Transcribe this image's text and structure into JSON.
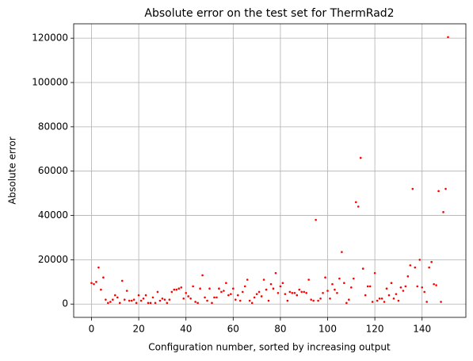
{
  "chart_data": {
    "type": "scatter",
    "title": "Absolute error on the test set for ThermRad2",
    "x_label": "Configuration number, sorted by increasing output",
    "y_label": "Absolute error",
    "color": "#ff0000",
    "grid": true,
    "xlim": [
      -7.55,
      158.55
    ],
    "ylim": [
      -6000,
      126500
    ],
    "xticks": [
      0,
      20,
      40,
      60,
      80,
      100,
      120,
      140
    ],
    "yticks": [
      0,
      20000,
      40000,
      60000,
      80000,
      100000,
      120000
    ],
    "x": [
      0,
      1,
      2,
      3,
      4,
      5,
      6,
      7,
      8,
      9,
      10,
      11,
      12,
      13,
      14,
      15,
      16,
      17,
      18,
      19,
      20,
      21,
      22,
      23,
      24,
      25,
      26,
      27,
      28,
      29,
      30,
      31,
      32,
      33,
      34,
      35,
      36,
      37,
      38,
      39,
      40,
      41,
      42,
      43,
      44,
      45,
      46,
      47,
      48,
      49,
      50,
      51,
      52,
      53,
      54,
      55,
      56,
      57,
      58,
      59,
      60,
      61,
      62,
      63,
      64,
      65,
      66,
      67,
      68,
      69,
      70,
      71,
      72,
      73,
      74,
      75,
      76,
      77,
      78,
      79,
      80,
      81,
      82,
      83,
      84,
      85,
      86,
      87,
      88,
      89,
      90,
      91,
      92,
      93,
      94,
      95,
      96,
      97,
      98,
      99,
      100,
      101,
      102,
      103,
      104,
      105,
      106,
      107,
      108,
      109,
      110,
      111,
      112,
      113,
      114,
      115,
      116,
      117,
      118,
      119,
      120,
      121,
      122,
      123,
      124,
      125,
      126,
      127,
      128,
      129,
      130,
      131,
      132,
      133,
      134,
      135,
      136,
      137,
      138,
      139,
      140,
      141,
      142,
      143,
      144,
      145,
      146,
      147,
      148,
      149,
      150,
      151
    ],
    "values": [
      9500,
      9000,
      10000,
      16500,
      6500,
      12000,
      2000,
      500,
      1000,
      2000,
      4000,
      3000,
      500,
      10500,
      2000,
      6000,
      1500,
      1500,
      2000,
      500,
      4000,
      1500,
      2500,
      4000,
      500,
      500,
      3000,
      500,
      5500,
      1500,
      2500,
      2000,
      500,
      2000,
      5500,
      6500,
      6500,
      7000,
      7500,
      2500,
      5000,
      3500,
      2500,
      8000,
      1000,
      500,
      7000,
      13000,
      3000,
      1500,
      7000,
      500,
      3000,
      3000,
      7000,
      5500,
      6000,
      9500,
      4000,
      4500,
      7000,
      2000,
      4000,
      1500,
      5500,
      8000,
      11000,
      1500,
      500,
      3000,
      4500,
      5500,
      3500,
      11000,
      6500,
      1500,
      9000,
      7000,
      14000,
      5000,
      8000,
      9500,
      4500,
      1500,
      5500,
      5000,
      5000,
      4000,
      6500,
      5500,
      5500,
      5000,
      11000,
      2000,
      1500,
      38000,
      1500,
      2500,
      5000,
      12000,
      6000,
      2500,
      9000,
      6500,
      5000,
      11500,
      23500,
      9500,
      500,
      2000,
      7500,
      11500,
      46000,
      44000,
      66000,
      16000,
      4000,
      8000,
      8000,
      1000,
      14000,
      1500,
      2500,
      2500,
      1000,
      7000,
      4000,
      9500,
      2500,
      4500,
      1500,
      7500,
      6000,
      8000,
      12500,
      17500,
      52000,
      16500,
      8000,
      20000,
      7500,
      5500,
      1000,
      16500,
      19000,
      9000,
      8500,
      51000,
      1000,
      41500,
      52000,
      120500
    ]
  }
}
